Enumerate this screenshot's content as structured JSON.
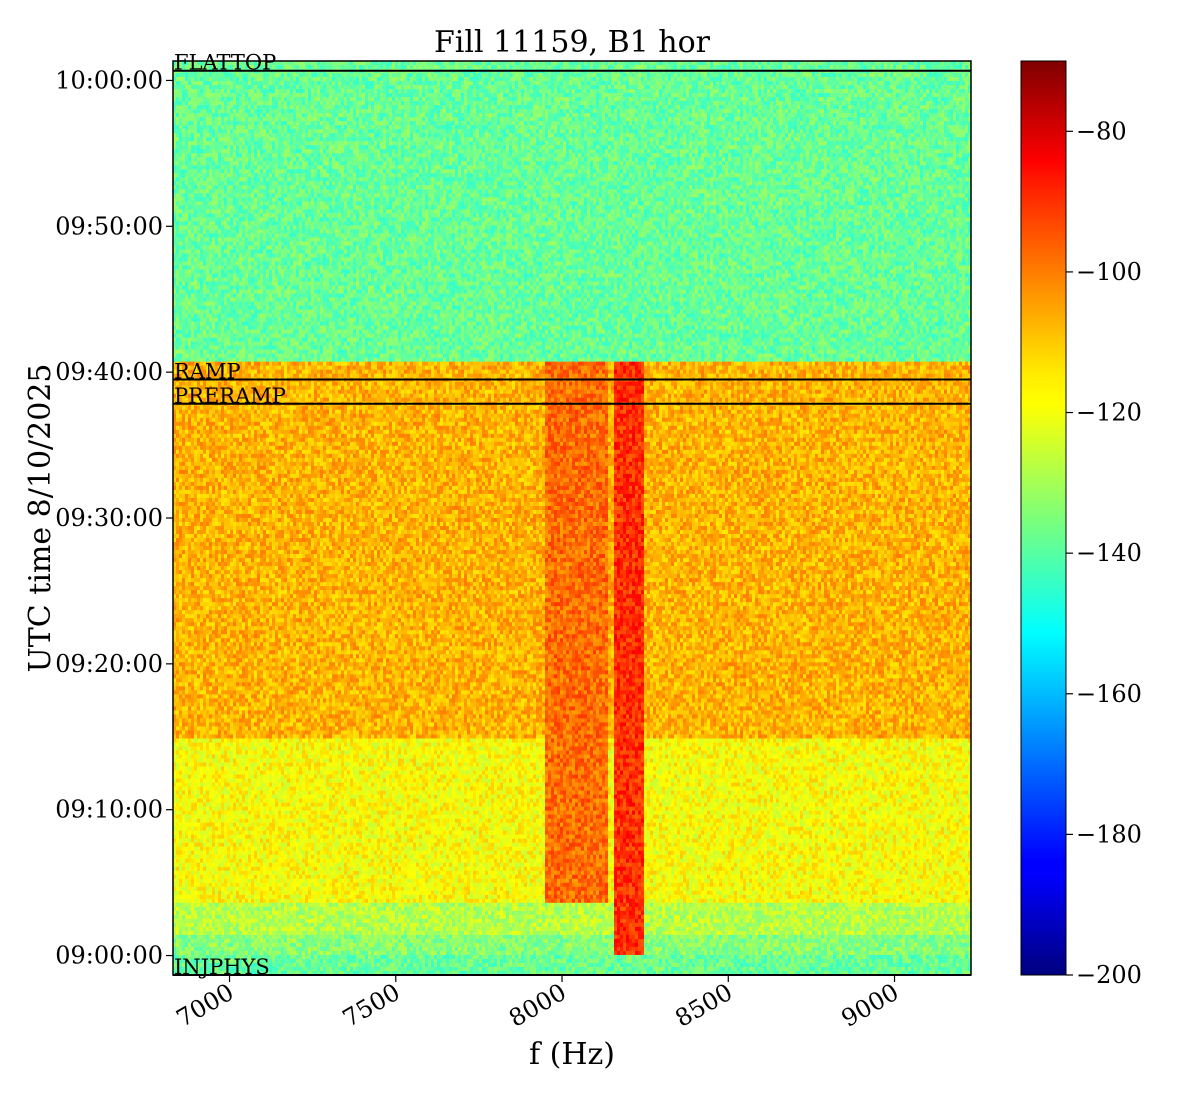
{
  "chart_data": {
    "type": "heatmap",
    "title": "Fill 11159, B1 hor",
    "xlabel": "f (Hz)",
    "ylabel": "UTC time 8/10/2025",
    "xlim": [
      6830,
      9230
    ],
    "ylim_seconds_label": "09:58:00 to 10:01:10 approx",
    "x_ticks": [
      {
        "value": 7000,
        "label": "7000"
      },
      {
        "value": 7500,
        "label": "7500"
      },
      {
        "value": 8000,
        "label": "8000"
      },
      {
        "value": 8500,
        "label": "8500"
      },
      {
        "value": 9000,
        "label": "9000"
      }
    ],
    "y_ticks": [
      {
        "time": "09:00:00",
        "label": "09:00:00"
      },
      {
        "time": "09:10:00",
        "label": "09:10:00"
      },
      {
        "time": "09:20:00",
        "label": "09:20:00"
      },
      {
        "time": "09:30:00",
        "label": "09:30:00"
      },
      {
        "time": "09:40:00",
        "label": "09:40:00"
      },
      {
        "time": "09:50:00",
        "label": "09:50:00"
      },
      {
        "time": "10:00:00",
        "label": "10:00:00"
      }
    ],
    "time_range": [
      "08:58:40",
      "10:01:20"
    ],
    "events": [
      {
        "name": "INJPHYS",
        "time": "08:58:40"
      },
      {
        "name": "PRERAMP",
        "time": "09:37:50"
      },
      {
        "name": "RAMP",
        "time": "09:39:30"
      },
      {
        "name": "FLATTOP",
        "time": "10:00:40"
      }
    ],
    "colorbar": {
      "colormap": "jet",
      "min": -200,
      "max": -70,
      "ticks": [
        -80,
        -100,
        -120,
        -140,
        -160,
        -180,
        -200
      ],
      "tick_labels": [
        "−80",
        "−100",
        "−120",
        "−140",
        "−160",
        "−180",
        "−200"
      ]
    },
    "regions": [
      {
        "from": "08:58:40",
        "to": "09:00:00",
        "level_db": -138
      },
      {
        "from": "09:00:00",
        "to": "09:01:20",
        "level_db": -134
      },
      {
        "from": "09:01:20",
        "to": "09:03:40",
        "level_db": -128
      },
      {
        "from": "09:03:40",
        "to": "09:15:00",
        "level_db": -119
      },
      {
        "from": "09:15:00",
        "to": "09:40:50",
        "level_db": -109
      },
      {
        "from": "09:40:50",
        "to": "10:01:20",
        "level_db": -138
      }
    ],
    "hot_bands": [
      {
        "f_from": 7950,
        "f_to": 8140,
        "from": "09:03:40",
        "to": "09:40:50",
        "level_db": -100
      },
      {
        "f_from": 8160,
        "f_to": 8250,
        "from": "09:00:00",
        "to": "09:40:50",
        "level_db": -92
      }
    ]
  }
}
